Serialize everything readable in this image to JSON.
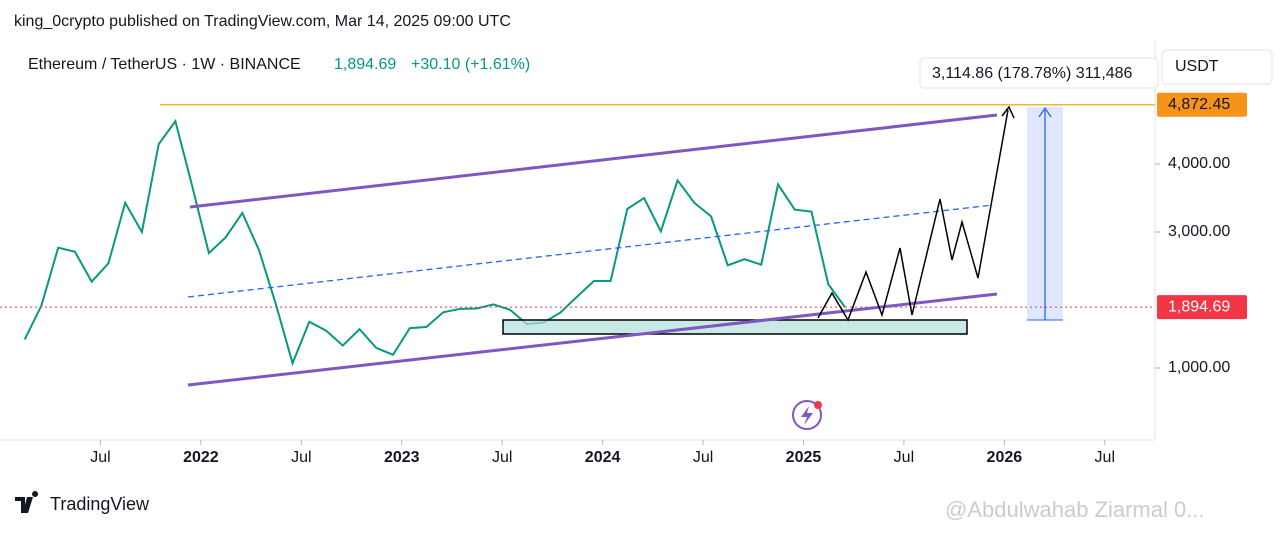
{
  "header": "king_0crypto published on TradingView.com, Mar 14, 2025 09:00 UTC",
  "footer": {
    "brand": "TradingView",
    "watermark": "@Abdulwahab Ziarmal 0..."
  },
  "chart_data": {
    "type": "line",
    "title": "Ethereum / TetherUS · 1W · BINANCE",
    "change": "+30.10 (+1.61%)",
    "currency": "USDT",
    "measure": "3,114.86 (178.78%) 311,486",
    "last_price": {
      "value": 1894.69,
      "label": "1,894.69"
    },
    "target_level": {
      "value": 4872.45,
      "label": "4,872.45"
    },
    "x": [
      "2021-02",
      "2021-03",
      "2021-04",
      "2021-05",
      "2021-06",
      "2021-07",
      "2021-08",
      "2021-09",
      "2021-10",
      "2021-11",
      "2021-12",
      "2022-01",
      "2022-02",
      "2022-03",
      "2022-04",
      "2022-05",
      "2022-06",
      "2022-07",
      "2022-08",
      "2022-09",
      "2022-10",
      "2022-11",
      "2022-12",
      "2023-01",
      "2023-02",
      "2023-03",
      "2023-04",
      "2023-05",
      "2023-06",
      "2023-07",
      "2023-08",
      "2023-09",
      "2023-10",
      "2023-11",
      "2023-12",
      "2024-01",
      "2024-02",
      "2024-03",
      "2024-04",
      "2024-05",
      "2024-06",
      "2024-07",
      "2024-08",
      "2024-09",
      "2024-10",
      "2024-11",
      "2024-12",
      "2025-01",
      "2025-02",
      "2025-03"
    ],
    "series": [
      {
        "name": "ETHUSDT",
        "color": "#089981",
        "values": [
          1420,
          1920,
          2770,
          2710,
          2270,
          2540,
          3430,
          3000,
          4290,
          4630,
          3680,
          2690,
          2920,
          3280,
          2730,
          1940,
          1070,
          1680,
          1550,
          1330,
          1570,
          1295,
          1195,
          1585,
          1605,
          1820,
          1870,
          1875,
          1935,
          1855,
          1645,
          1670,
          1815,
          2050,
          2280,
          2280,
          3340,
          3500,
          3010,
          3760,
          3430,
          3230,
          2510,
          2600,
          2520,
          3700,
          3330,
          3300,
          2235,
          1895
        ]
      }
    ],
    "ylim": [
      -59,
      5824
    ],
    "yticks": [
      {
        "value": 1000,
        "label": "1,000.00"
      },
      {
        "value": 3000,
        "label": "3,000.00"
      },
      {
        "value": 4000,
        "label": "4,000.00"
      }
    ],
    "xlim": [
      "2021-01",
      "2026-10"
    ],
    "xticks": [
      {
        "value": "2021-07",
        "label": "Jul"
      },
      {
        "value": "2022-01",
        "label": "2022"
      },
      {
        "value": "2022-07",
        "label": "Jul"
      },
      {
        "value": "2023-01",
        "label": "2023"
      },
      {
        "value": "2023-07",
        "label": "Jul"
      },
      {
        "value": "2024-01",
        "label": "2024"
      },
      {
        "value": "2024-07",
        "label": "Jul"
      },
      {
        "value": "2025-01",
        "label": "2025"
      },
      {
        "value": "2025-07",
        "label": "Jul"
      },
      {
        "value": "2026-01",
        "label": "2026"
      },
      {
        "value": "2026-07",
        "label": "Jul"
      }
    ]
  }
}
